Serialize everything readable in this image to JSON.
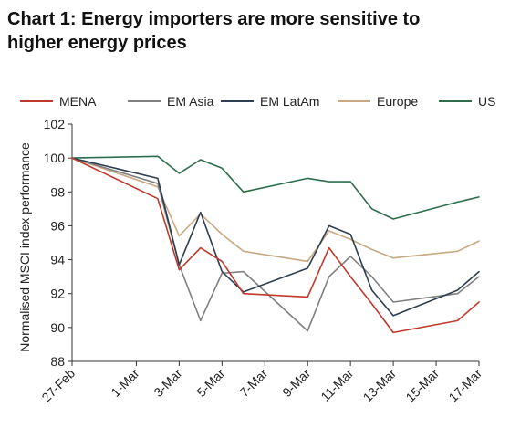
{
  "title_lines": [
    "Chart 1: Energy importers are more sensitive to",
    "higher energy prices"
  ],
  "chart_data": {
    "type": "line",
    "title": "Chart 1: Energy importers are more sensitive to higher energy prices",
    "xlabel": "",
    "ylabel": "Normalised MSCI index performance",
    "ylim": [
      88,
      102
    ],
    "yticks": [
      88,
      90,
      92,
      94,
      96,
      98,
      100,
      102
    ],
    "xticks": [
      "27-Feb",
      "1-Mar",
      "3-Mar",
      "5-Mar",
      "7-Mar",
      "9-Mar",
      "11-Mar",
      "13-Mar",
      "15-Mar",
      "17-Mar"
    ],
    "x": [
      "27-Feb",
      "2-Mar",
      "3-Mar",
      "4-Mar",
      "5-Mar",
      "6-Mar",
      "9-Mar",
      "10-Mar",
      "11-Mar",
      "12-Mar",
      "13-Mar",
      "16-Mar",
      "17-Mar"
    ],
    "legend_position": "top",
    "grid": false,
    "series": [
      {
        "name": "MENA",
        "color": "#c0392b",
        "values": [
          100.0,
          97.6,
          93.4,
          94.7,
          93.9,
          92.0,
          91.8,
          94.7,
          93.0,
          91.4,
          89.7,
          90.4,
          91.5
        ]
      },
      {
        "name": "EM Asia",
        "color": "#7f7f7f",
        "values": [
          100.0,
          98.5,
          93.7,
          90.4,
          93.2,
          93.3,
          89.8,
          93.0,
          94.2,
          93.0,
          91.5,
          92.0,
          93.0
        ]
      },
      {
        "name": "EM LatAm",
        "color": "#2c3e50",
        "values": [
          100.0,
          98.8,
          93.7,
          96.8,
          93.3,
          92.1,
          93.5,
          96.0,
          95.5,
          92.2,
          90.7,
          92.2,
          93.3
        ]
      },
      {
        "name": "Europe",
        "color": "#c8a882",
        "values": [
          100.0,
          98.3,
          95.4,
          96.7,
          95.5,
          94.5,
          93.9,
          95.7,
          95.2,
          94.6,
          94.1,
          94.5,
          95.1
        ]
      },
      {
        "name": "US",
        "color": "#2e6e4c",
        "values": [
          100.0,
          100.1,
          99.1,
          99.9,
          99.4,
          98.0,
          98.8,
          98.6,
          98.6,
          97.0,
          96.4,
          97.4,
          97.7
        ]
      }
    ]
  }
}
